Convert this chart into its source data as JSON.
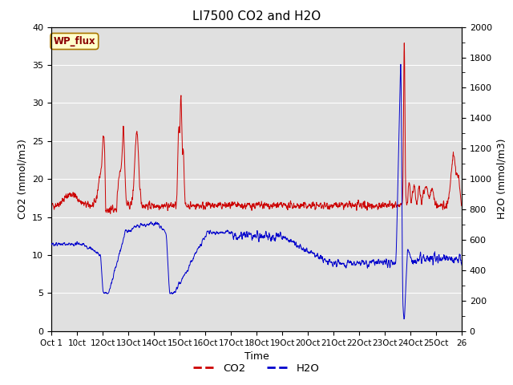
{
  "title": "LI7500 CO2 and H2O",
  "xlabel": "Time",
  "ylabel_left": "CO2 (mmol/m3)",
  "ylabel_right": "H2O (mmol/m3)",
  "ylim_left": [
    0,
    40
  ],
  "ylim_right": [
    0,
    2000
  ],
  "yticks_left": [
    0,
    5,
    10,
    15,
    20,
    25,
    30,
    35,
    40
  ],
  "yticks_right": [
    0,
    200,
    400,
    600,
    800,
    1000,
    1200,
    1400,
    1600,
    1800,
    2000
  ],
  "xtick_labels": [
    "Oct 1",
    "10ct",
    "12Oct",
    "13Oct",
    "14Oct",
    "15Oct",
    "16Oct",
    "17Oct",
    "18Oct",
    "19Oct",
    "20Oct",
    "21Oct",
    "22Oct",
    "23Oct",
    "24Oct",
    "25Oct",
    "26"
  ],
  "co2_color": "#cc0000",
  "h2o_color": "#0000cc",
  "background_color": "#e0e0e0",
  "wp_flux_label": "WP_flux",
  "wp_flux_bg": "#ffffcc",
  "wp_flux_border": "#cc8800",
  "legend_co2": "CO2",
  "legend_h2o": "H2O",
  "title_fontsize": 11,
  "axis_label_fontsize": 9,
  "tick_fontsize": 8
}
